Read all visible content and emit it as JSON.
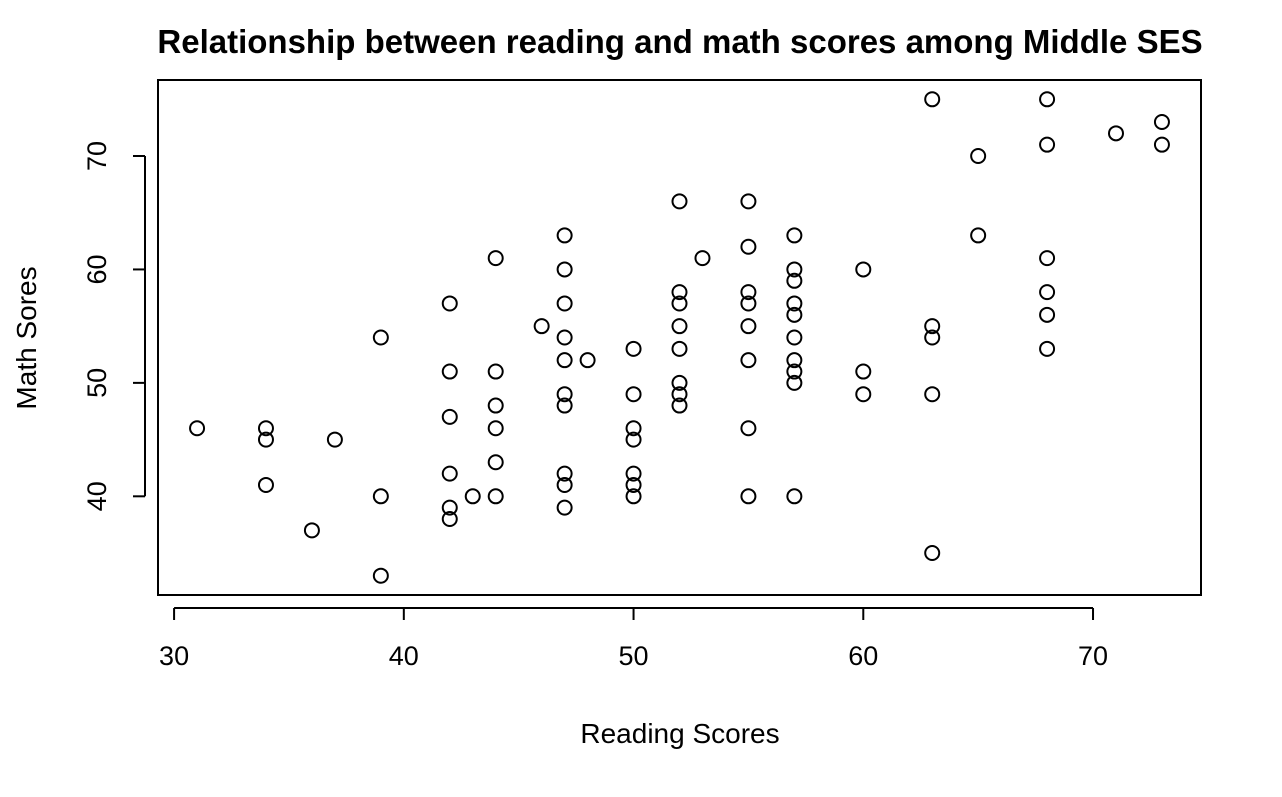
{
  "chart_data": {
    "type": "scatter",
    "title": "Relationship between reading and math scores among Middle SES",
    "xlabel": "Reading Scores",
    "ylabel": "Math Sores",
    "xlim": [
      29.3,
      74.7
    ],
    "ylim": [
      31.3,
      76.7
    ],
    "xticks": [
      30,
      40,
      50,
      60,
      70
    ],
    "yticks": [
      40,
      50,
      60,
      70
    ],
    "grid": false,
    "points": [
      {
        "x": 31,
        "y": 46
      },
      {
        "x": 34,
        "y": 46
      },
      {
        "x": 34,
        "y": 45
      },
      {
        "x": 34,
        "y": 41
      },
      {
        "x": 36,
        "y": 37
      },
      {
        "x": 37,
        "y": 45
      },
      {
        "x": 39,
        "y": 54
      },
      {
        "x": 39,
        "y": 40
      },
      {
        "x": 39,
        "y": 33
      },
      {
        "x": 42,
        "y": 57
      },
      {
        "x": 42,
        "y": 51
      },
      {
        "x": 42,
        "y": 47
      },
      {
        "x": 42,
        "y": 42
      },
      {
        "x": 42,
        "y": 39
      },
      {
        "x": 42,
        "y": 38
      },
      {
        "x": 43,
        "y": 40
      },
      {
        "x": 44,
        "y": 61
      },
      {
        "x": 44,
        "y": 51
      },
      {
        "x": 44,
        "y": 48
      },
      {
        "x": 44,
        "y": 46
      },
      {
        "x": 44,
        "y": 43
      },
      {
        "x": 44,
        "y": 40
      },
      {
        "x": 46,
        "y": 55
      },
      {
        "x": 47,
        "y": 63
      },
      {
        "x": 47,
        "y": 60
      },
      {
        "x": 47,
        "y": 57
      },
      {
        "x": 47,
        "y": 54
      },
      {
        "x": 47,
        "y": 52
      },
      {
        "x": 47,
        "y": 49
      },
      {
        "x": 47,
        "y": 48
      },
      {
        "x": 47,
        "y": 42
      },
      {
        "x": 47,
        "y": 41
      },
      {
        "x": 47,
        "y": 39
      },
      {
        "x": 48,
        "y": 52
      },
      {
        "x": 50,
        "y": 53
      },
      {
        "x": 50,
        "y": 49
      },
      {
        "x": 50,
        "y": 46
      },
      {
        "x": 50,
        "y": 45
      },
      {
        "x": 50,
        "y": 42
      },
      {
        "x": 50,
        "y": 41
      },
      {
        "x": 50,
        "y": 40
      },
      {
        "x": 52,
        "y": 66
      },
      {
        "x": 52,
        "y": 58
      },
      {
        "x": 52,
        "y": 57
      },
      {
        "x": 52,
        "y": 55
      },
      {
        "x": 52,
        "y": 53
      },
      {
        "x": 52,
        "y": 50
      },
      {
        "x": 52,
        "y": 49
      },
      {
        "x": 52,
        "y": 48
      },
      {
        "x": 53,
        "y": 61
      },
      {
        "x": 55,
        "y": 66
      },
      {
        "x": 55,
        "y": 62
      },
      {
        "x": 55,
        "y": 58
      },
      {
        "x": 55,
        "y": 57
      },
      {
        "x": 55,
        "y": 55
      },
      {
        "x": 55,
        "y": 52
      },
      {
        "x": 55,
        "y": 46
      },
      {
        "x": 55,
        "y": 40
      },
      {
        "x": 57,
        "y": 63
      },
      {
        "x": 57,
        "y": 60
      },
      {
        "x": 57,
        "y": 59
      },
      {
        "x": 57,
        "y": 57
      },
      {
        "x": 57,
        "y": 56
      },
      {
        "x": 57,
        "y": 54
      },
      {
        "x": 57,
        "y": 52
      },
      {
        "x": 57,
        "y": 51
      },
      {
        "x": 57,
        "y": 50
      },
      {
        "x": 57,
        "y": 40
      },
      {
        "x": 60,
        "y": 60
      },
      {
        "x": 60,
        "y": 51
      },
      {
        "x": 60,
        "y": 49
      },
      {
        "x": 63,
        "y": 75
      },
      {
        "x": 63,
        "y": 55
      },
      {
        "x": 63,
        "y": 54
      },
      {
        "x": 63,
        "y": 49
      },
      {
        "x": 63,
        "y": 35
      },
      {
        "x": 65,
        "y": 70
      },
      {
        "x": 65,
        "y": 63
      },
      {
        "x": 68,
        "y": 75
      },
      {
        "x": 68,
        "y": 71
      },
      {
        "x": 68,
        "y": 61
      },
      {
        "x": 68,
        "y": 58
      },
      {
        "x": 68,
        "y": 56
      },
      {
        "x": 68,
        "y": 53
      },
      {
        "x": 71,
        "y": 72
      },
      {
        "x": 73,
        "y": 73
      },
      {
        "x": 73,
        "y": 71
      }
    ]
  }
}
